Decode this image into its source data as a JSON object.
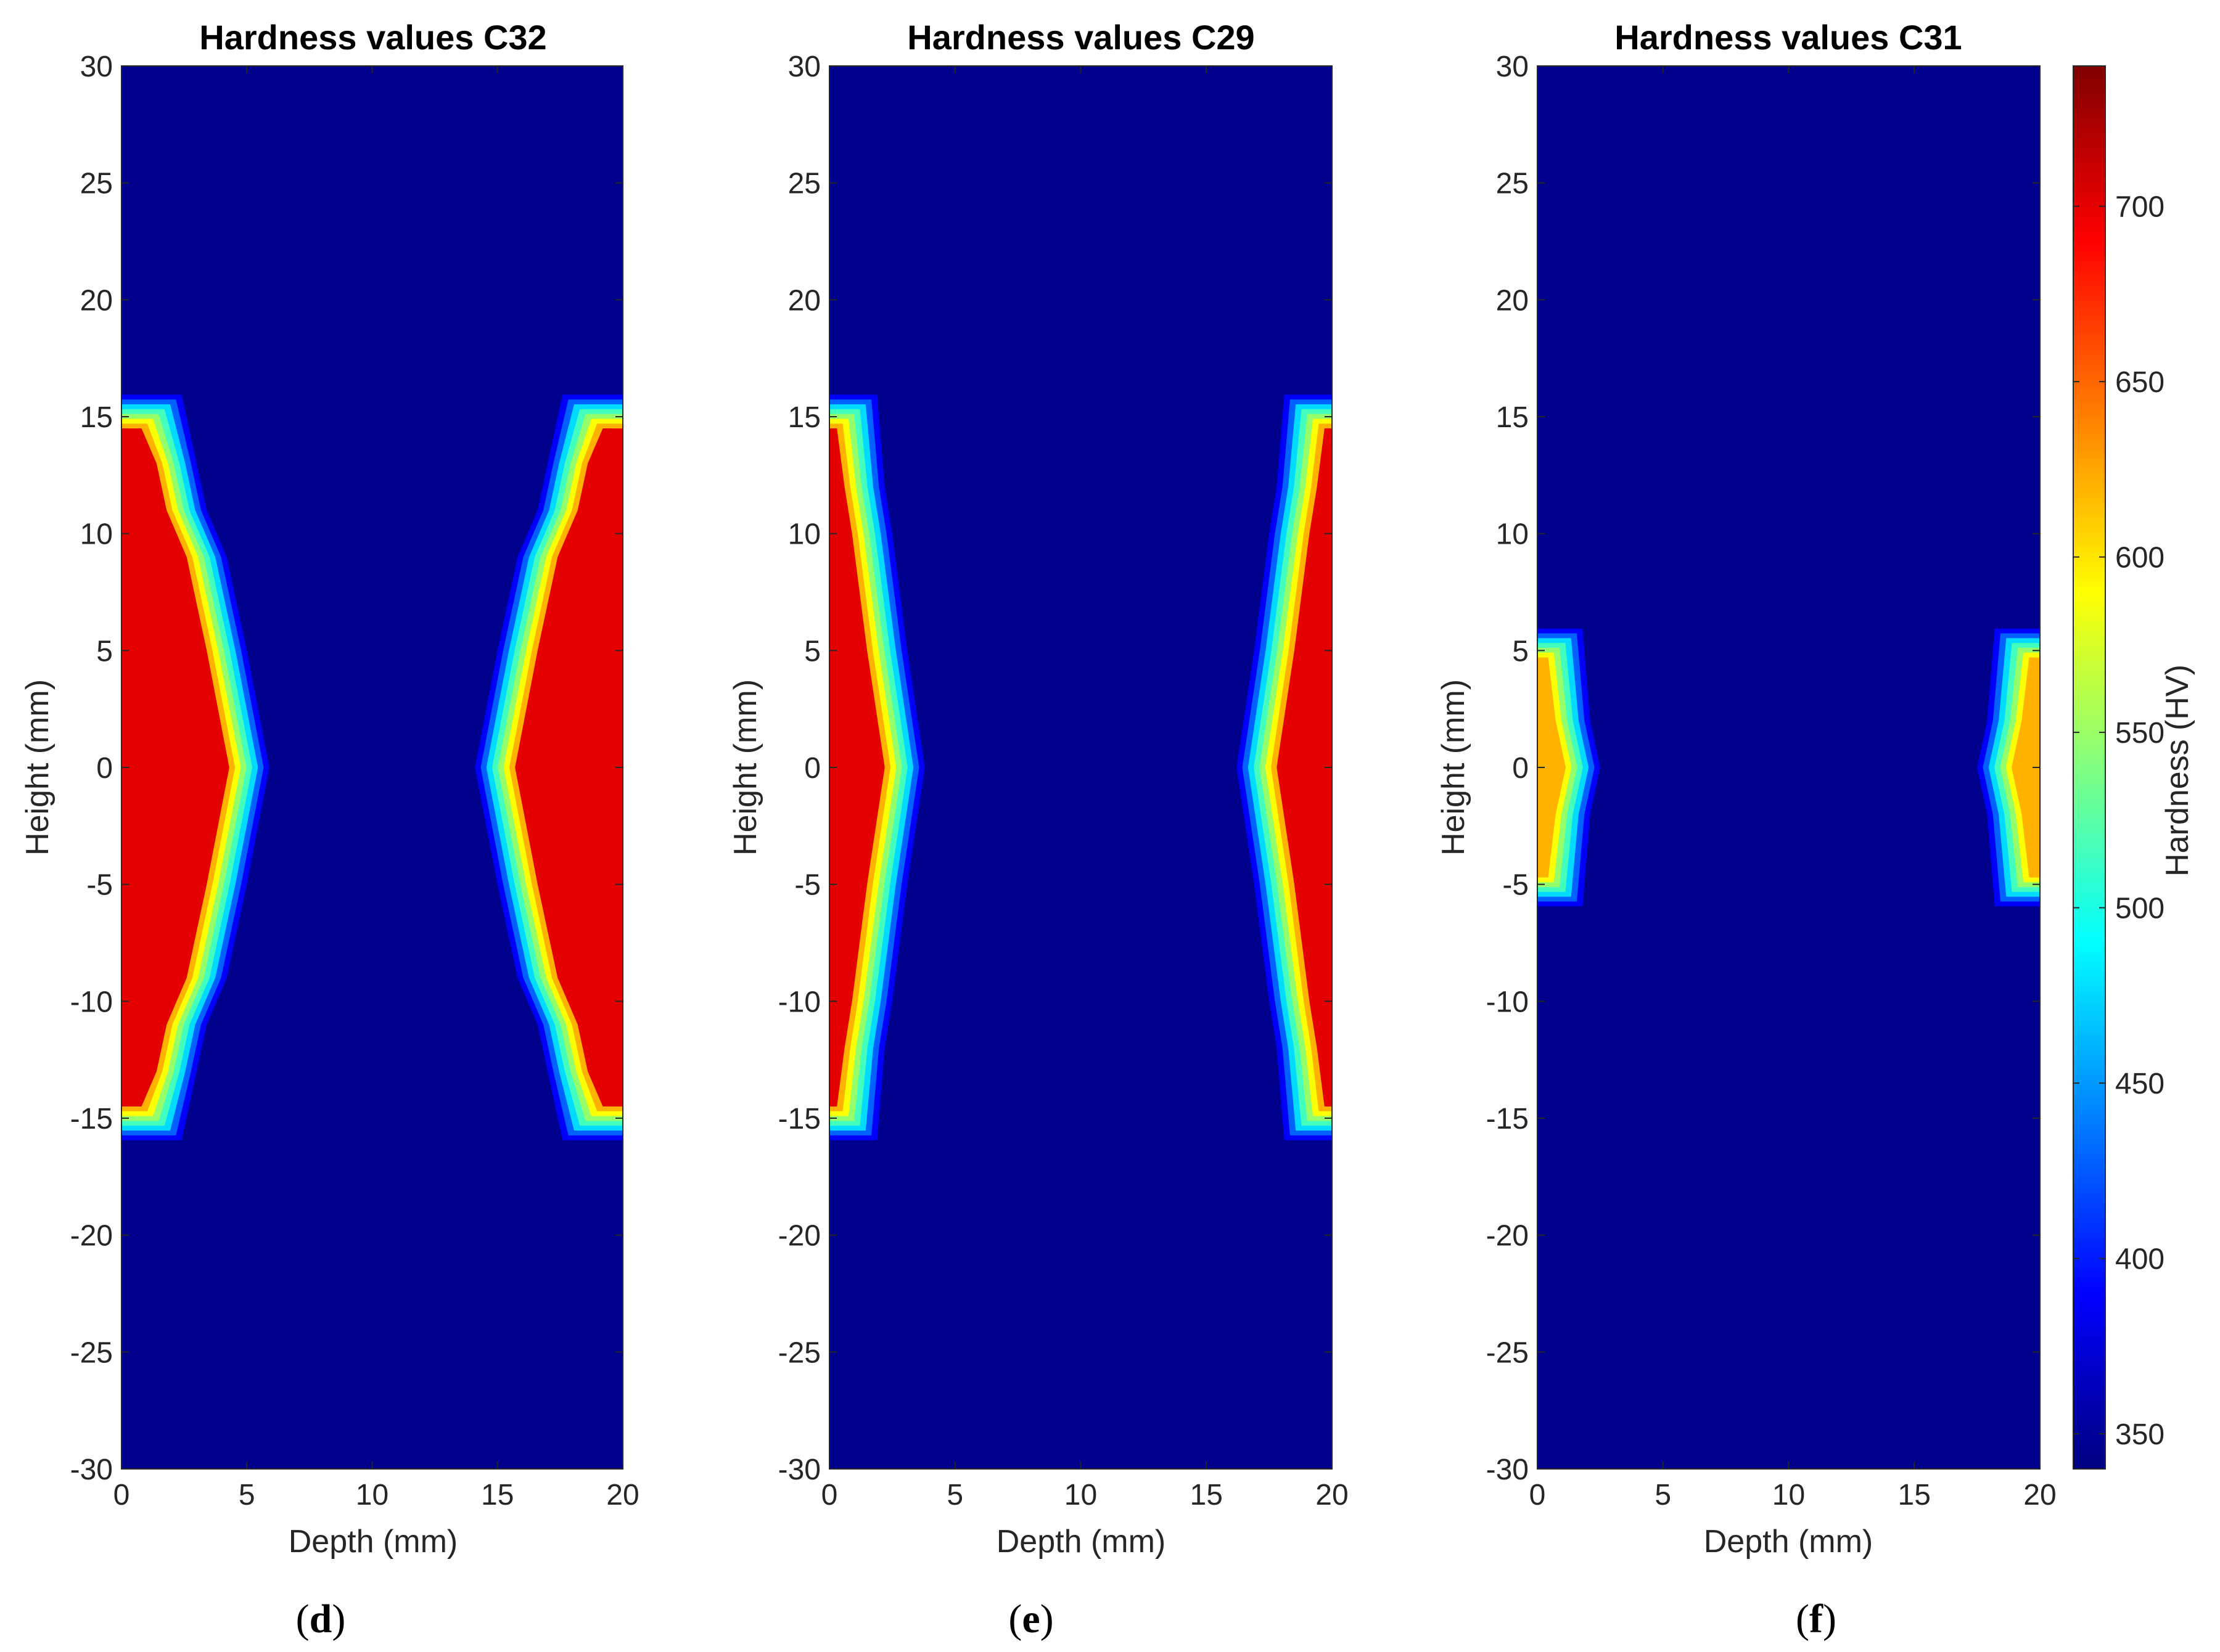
{
  "chart_data": [
    {
      "type": "heatmap",
      "title": "Hardness values C32",
      "xlabel": "Depth (mm)",
      "ylabel": "Height (mm)",
      "xlim": [
        0,
        20
      ],
      "ylim": [
        -30,
        30
      ],
      "xticks": [
        0,
        5,
        10,
        15,
        20
      ],
      "yticks": [
        -30,
        -25,
        -20,
        -15,
        -10,
        -5,
        0,
        5,
        10,
        15,
        20,
        25,
        30
      ],
      "hardened_profile": {
        "heights": [
          -14.5,
          -13,
          -11,
          -9,
          -7,
          -5,
          0,
          5,
          7,
          9,
          11,
          13,
          14.5
        ],
        "case_depth": [
          0.8,
          1.4,
          1.8,
          2.6,
          3.0,
          3.4,
          4.3,
          3.4,
          3.0,
          2.6,
          1.8,
          1.4,
          0.8
        ]
      },
      "core_hardness": 345,
      "case_hardness": 700,
      "sub_label": "d"
    },
    {
      "type": "heatmap",
      "title": "Hardness values C29",
      "xlabel": "Depth (mm)",
      "ylabel": "Height (mm)",
      "xlim": [
        0,
        20
      ],
      "ylim": [
        -30,
        30
      ],
      "xticks": [
        0,
        5,
        10,
        15,
        20
      ],
      "yticks": [
        -30,
        -25,
        -20,
        -15,
        -10,
        -5,
        0,
        5,
        10,
        15,
        20,
        25,
        30
      ],
      "hardened_profile": {
        "heights": [
          -14.5,
          -12,
          -10,
          -5,
          0,
          5,
          10,
          12,
          14.5
        ],
        "case_depth": [
          0.3,
          0.6,
          0.9,
          1.5,
          2.2,
          1.5,
          0.9,
          0.6,
          0.3
        ]
      },
      "core_hardness": 345,
      "case_hardness": 700,
      "sub_label": "e"
    },
    {
      "type": "heatmap",
      "title": "Hardness values C31",
      "xlabel": "Depth (mm)",
      "ylabel": "Height (mm)",
      "xlim": [
        0,
        20
      ],
      "ylim": [
        -30,
        30
      ],
      "xticks": [
        0,
        5,
        10,
        15,
        20
      ],
      "yticks": [
        -30,
        -25,
        -20,
        -15,
        -10,
        -5,
        0,
        5,
        10,
        15,
        20,
        25,
        30
      ],
      "hardened_profile": {
        "heights": [
          -4.5,
          -2,
          0,
          2,
          4.5
        ],
        "case_depth": [
          0.2,
          0.5,
          0.9,
          0.5,
          0.2
        ]
      },
      "core_hardness": 345,
      "case_hardness": 620,
      "sub_label": "f"
    }
  ],
  "colorbar": {
    "label": "Hardness (HV)",
    "range": [
      340,
      740
    ],
    "ticks": [
      350,
      400,
      450,
      500,
      550,
      600,
      650,
      700
    ],
    "colormap": "jet"
  },
  "colors": {
    "core": "#00008f",
    "case": "#ff0000",
    "axis": "#262626"
  },
  "sub_labels": [
    {
      "open": "(",
      "letter": "d",
      "close": ")"
    },
    {
      "open": "(",
      "letter": "e",
      "close": ")"
    },
    {
      "open": "(",
      "letter": "f",
      "close": ")"
    }
  ]
}
